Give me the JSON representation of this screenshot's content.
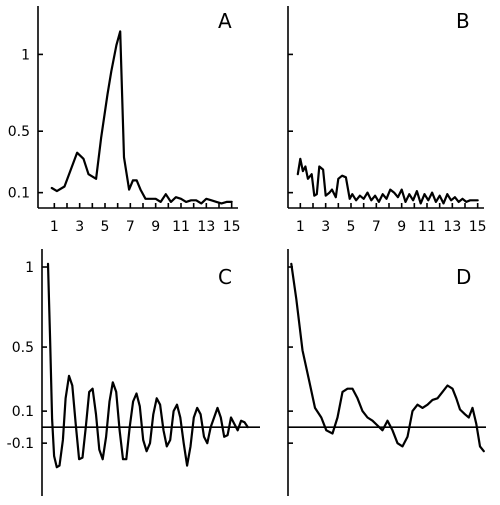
{
  "chart_data": [
    {
      "id": "A",
      "type": "line",
      "panel_label": "A",
      "xlim": [
        0.5,
        15.5
      ],
      "ylim": [
        0,
        1.25
      ],
      "x_ticks": [
        1,
        3,
        5,
        7,
        9,
        11,
        13,
        15
      ],
      "x_tick_labels": [
        "1",
        "3",
        "5",
        "7",
        "9",
        "11",
        "13",
        "15"
      ],
      "y_ticks": [
        0.1,
        0.5,
        1
      ],
      "y_tick_labels": [
        "0.1",
        "0.5",
        "1"
      ],
      "series": [
        {
          "x": [
            0.8,
            1.2,
            1.8,
            2.3,
            2.8,
            3.3,
            3.7,
            4.3,
            4.7,
            5.2,
            5.5,
            5.9,
            6.2,
            6.5,
            6.9,
            7.2,
            7.5,
            7.8,
            8.2,
            8.6,
            9.0,
            9.4,
            9.8,
            10.2,
            10.6,
            11.0,
            11.4,
            11.8,
            12.2,
            12.6,
            13.0,
            13.4,
            13.8,
            14.2,
            14.6,
            15.0
          ],
          "y": [
            0.13,
            0.11,
            0.14,
            0.25,
            0.36,
            0.32,
            0.22,
            0.19,
            0.46,
            0.74,
            0.89,
            1.06,
            1.15,
            0.33,
            0.12,
            0.18,
            0.18,
            0.12,
            0.06,
            0.06,
            0.06,
            0.04,
            0.09,
            0.04,
            0.07,
            0.06,
            0.04,
            0.05,
            0.05,
            0.03,
            0.06,
            0.05,
            0.04,
            0.03,
            0.04,
            0.04
          ]
        }
      ]
    },
    {
      "id": "B",
      "type": "line",
      "panel_label": "B",
      "xlim": [
        0.5,
        15.5
      ],
      "ylim": [
        0,
        1.25
      ],
      "x_ticks": [
        1,
        3,
        5,
        7,
        9,
        11,
        13,
        15
      ],
      "x_tick_labels": [
        "1",
        "3",
        "5",
        "7",
        "9",
        "11",
        "13",
        "15"
      ],
      "y_ticks": [
        0.1,
        0.5,
        1
      ],
      "y_tick_labels": [
        "",
        "",
        ""
      ],
      "series": [
        {
          "x": [
            0.8,
            1.0,
            1.2,
            1.4,
            1.6,
            1.9,
            2.1,
            2.3,
            2.5,
            2.8,
            3.0,
            3.3,
            3.5,
            3.8,
            4.0,
            4.3,
            4.6,
            4.9,
            5.1,
            5.4,
            5.7,
            6.0,
            6.3,
            6.6,
            6.9,
            7.2,
            7.5,
            7.8,
            8.1,
            8.4,
            8.7,
            9.0,
            9.3,
            9.6,
            9.9,
            10.2,
            10.5,
            10.8,
            11.1,
            11.4,
            11.7,
            12.0,
            12.3,
            12.6,
            12.9,
            13.2,
            13.5,
            13.8,
            14.1,
            14.4,
            14.7,
            15.0
          ],
          "y": [
            0.22,
            0.32,
            0.24,
            0.27,
            0.19,
            0.22,
            0.08,
            0.09,
            0.27,
            0.25,
            0.08,
            0.1,
            0.12,
            0.07,
            0.19,
            0.21,
            0.2,
            0.06,
            0.09,
            0.05,
            0.08,
            0.06,
            0.1,
            0.05,
            0.08,
            0.04,
            0.09,
            0.06,
            0.12,
            0.1,
            0.07,
            0.12,
            0.04,
            0.09,
            0.05,
            0.11,
            0.03,
            0.09,
            0.05,
            0.1,
            0.04,
            0.08,
            0.03,
            0.09,
            0.05,
            0.07,
            0.04,
            0.06,
            0.04,
            0.05,
            0.05,
            0.05
          ]
        }
      ]
    },
    {
      "id": "C",
      "type": "line",
      "panel_label": "C",
      "xlim": [
        0,
        16
      ],
      "ylim": [
        -0.43,
        1.05
      ],
      "x_ticks": [],
      "x_tick_labels": [],
      "y_ticks": [
        -0.1,
        0.1,
        0.5,
        1
      ],
      "y_tick_labels": [
        "-0.1",
        "0.1",
        "0.5",
        "1"
      ],
      "zero_line": true,
      "series": [
        {
          "x": [
            0.3,
            0.45,
            0.6,
            0.75,
            0.95,
            1.15,
            1.4,
            1.6,
            1.85,
            2.1,
            2.35,
            2.6,
            2.85,
            3.1,
            3.35,
            3.6,
            3.85,
            4.1,
            4.35,
            4.6,
            4.85,
            5.1,
            5.35,
            5.6,
            5.85,
            6.1,
            6.35,
            6.6,
            6.85,
            7.1,
            7.35,
            7.6,
            7.85,
            8.1,
            8.35,
            8.6,
            8.85,
            9.1,
            9.35,
            9.6,
            9.85,
            10.1,
            10.35,
            10.6,
            10.85,
            11.1,
            11.35,
            11.6,
            11.85,
            12.1,
            12.35,
            12.6,
            12.85,
            13.1,
            13.35,
            13.6,
            13.85,
            14.1,
            14.35,
            14.6,
            14.85,
            15.1
          ],
          "y": [
            1.02,
            0.55,
            0.05,
            -0.18,
            -0.25,
            -0.24,
            -0.08,
            0.18,
            0.32,
            0.26,
            0.02,
            -0.2,
            -0.19,
            0.0,
            0.22,
            0.24,
            0.08,
            -0.14,
            -0.2,
            -0.06,
            0.16,
            0.28,
            0.22,
            -0.02,
            -0.2,
            -0.2,
            0.0,
            0.16,
            0.21,
            0.13,
            -0.08,
            -0.15,
            -0.1,
            0.08,
            0.18,
            0.14,
            -0.02,
            -0.12,
            -0.08,
            0.1,
            0.14,
            0.06,
            -0.1,
            -0.24,
            -0.12,
            0.06,
            0.12,
            0.08,
            -0.06,
            -0.1,
            0.0,
            0.06,
            0.12,
            0.06,
            -0.06,
            -0.05,
            0.06,
            0.02,
            -0.02,
            0.04,
            0.03,
            0.0
          ]
        }
      ]
    },
    {
      "id": "D",
      "type": "line",
      "panel_label": "D",
      "xlim": [
        0,
        16
      ],
      "ylim": [
        -0.43,
        1.05
      ],
      "x_ticks": [],
      "x_tick_labels": [],
      "y_ticks": [
        -0.1,
        0.1,
        0.5,
        1
      ],
      "y_tick_labels": [
        "",
        "",
        "",
        ""
      ],
      "zero_line": true,
      "series": [
        {
          "x": [
            0.1,
            0.5,
            1.0,
            1.5,
            2.0,
            2.5,
            2.9,
            3.4,
            3.8,
            4.2,
            4.6,
            5.0,
            5.4,
            5.8,
            6.2,
            6.6,
            7.0,
            7.4,
            7.8,
            8.2,
            8.6,
            9.0,
            9.4,
            9.8,
            10.2,
            10.6,
            11.0,
            11.4,
            11.8,
            12.2,
            12.6,
            13.0,
            13.3,
            13.6,
            14.0,
            14.3,
            14.6,
            14.9,
            15.2,
            15.5
          ],
          "y": [
            1.02,
            0.8,
            0.48,
            0.3,
            0.12,
            0.06,
            -0.02,
            -0.04,
            0.06,
            0.22,
            0.24,
            0.24,
            0.18,
            0.1,
            0.06,
            0.04,
            0.01,
            -0.02,
            0.04,
            -0.02,
            -0.1,
            -0.12,
            -0.06,
            0.1,
            0.14,
            0.12,
            0.14,
            0.17,
            0.18,
            0.22,
            0.26,
            0.24,
            0.18,
            0.11,
            0.08,
            0.06,
            0.12,
            0.02,
            -0.12,
            -0.15
          ]
        }
      ]
    }
  ]
}
